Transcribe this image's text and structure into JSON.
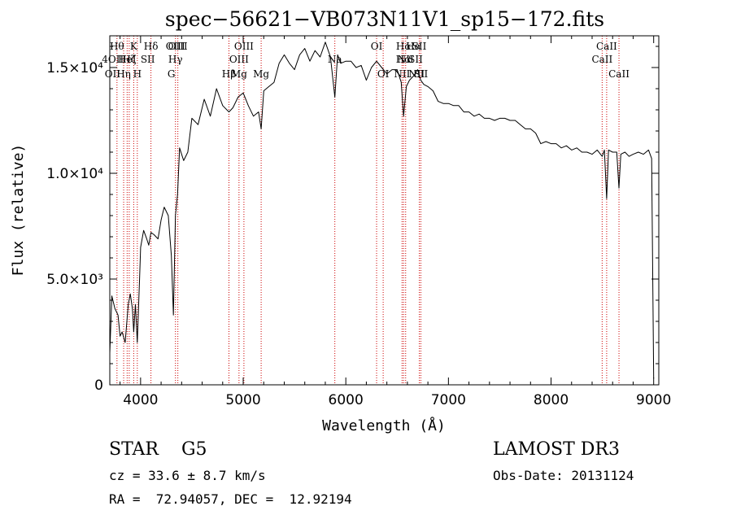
{
  "chart_data": {
    "type": "line",
    "title": "spec−56621−VB073N11V1_sp15−172.fits",
    "xlabel": "Wavelength (Å)",
    "ylabel": "Flux (relative)",
    "xlim": [
      3700,
      9050
    ],
    "ylim": [
      0,
      16500
    ],
    "x_ticks": [
      4000,
      5000,
      6000,
      7000,
      8000,
      9000
    ],
    "y_ticks": [
      {
        "value": 0,
        "label": "0"
      },
      {
        "value": 5000,
        "label": "5.0×10³"
      },
      {
        "value": 10000,
        "label": "1.0×10⁴"
      },
      {
        "value": 15000,
        "label": "1.5×10⁴"
      }
    ],
    "grid": false,
    "legend": "none",
    "series": [
      {
        "x": [
          3700,
          3720,
          3750,
          3780,
          3800,
          3820,
          3850,
          3880,
          3900,
          3920,
          3933,
          3950,
          3968,
          3990,
          4000,
          4030,
          4060,
          4080,
          4101,
          4130,
          4170,
          4200,
          4230,
          4270,
          4300,
          4320,
          4340,
          4360,
          4380,
          4420,
          4460,
          4500,
          4560,
          4620,
          4680,
          4740,
          4800,
          4861,
          4900,
          4950,
          5000,
          5050,
          5100,
          5150,
          5175,
          5200,
          5250,
          5300,
          5350,
          5400,
          5450,
          5500,
          5550,
          5600,
          5650,
          5700,
          5750,
          5800,
          5850,
          5893,
          5920,
          5950,
          6000,
          6050,
          6100,
          6150,
          6200,
          6250,
          6300,
          6350,
          6400,
          6450,
          6500,
          6540,
          6563,
          6590,
          6620,
          6660,
          6700,
          6730,
          6760,
          6800,
          6850,
          6900,
          6950,
          7000,
          7050,
          7100,
          7150,
          7200,
          7250,
          7300,
          7350,
          7400,
          7450,
          7500,
          7550,
          7600,
          7650,
          7700,
          7750,
          7800,
          7850,
          7900,
          7950,
          8000,
          8050,
          8100,
          8150,
          8200,
          8250,
          8300,
          8350,
          8400,
          8450,
          8498,
          8520,
          8542,
          8560,
          8600,
          8640,
          8662,
          8680,
          8720,
          8760,
          8800,
          8850,
          8900,
          8950,
          8980,
          9000
        ],
        "y": [
          1500,
          4200,
          3600,
          3300,
          2300,
          2500,
          2000,
          3800,
          4300,
          3600,
          2500,
          3800,
          2000,
          5000,
          6500,
          7300,
          6900,
          6600,
          7200,
          7100,
          6900,
          7800,
          8400,
          8000,
          6100,
          3300,
          8000,
          9000,
          11200,
          10600,
          11000,
          12600,
          12300,
          13500,
          12700,
          14000,
          13200,
          12900,
          13100,
          13600,
          13800,
          13200,
          12700,
          12900,
          12100,
          13900,
          14100,
          14300,
          15200,
          15600,
          15200,
          14900,
          15600,
          15900,
          15300,
          15800,
          15500,
          16200,
          15500,
          13600,
          15600,
          15200,
          15300,
          15300,
          15000,
          15100,
          14400,
          15000,
          15300,
          15000,
          14700,
          14900,
          14900,
          14300,
          12700,
          14100,
          14400,
          14600,
          14900,
          14400,
          14200,
          14100,
          13900,
          13400,
          13300,
          13300,
          13200,
          13200,
          12900,
          12900,
          12700,
          12800,
          12600,
          12600,
          12500,
          12600,
          12600,
          12500,
          12500,
          12300,
          12100,
          12100,
          11900,
          11400,
          11500,
          11400,
          11400,
          11200,
          11300,
          11100,
          11200,
          11000,
          11000,
          10900,
          11100,
          10800,
          11100,
          8800,
          11100,
          11000,
          11000,
          9300,
          10900,
          11000,
          10800,
          10900,
          11000,
          10900,
          11100,
          10700,
          300
        ]
      }
    ],
    "lines": [
      {
        "w": 3770,
        "label": "Hθ",
        "row": 0
      },
      {
        "w": 3835,
        "label": "Hη",
        "row": 2
      },
      {
        "w": 3869,
        "label": "HeI",
        "row": 1
      },
      {
        "w": 3889,
        "label": "Hζ",
        "row": 1
      },
      {
        "w": 3933,
        "label": "K",
        "row": 0
      },
      {
        "w": 3968,
        "label": "H",
        "row": 2
      },
      {
        "w": 4101,
        "label": "Hδ",
        "row": 0
      },
      {
        "w": 4340,
        "label": "Hγ",
        "row": 1
      },
      {
        "w": 4363,
        "label": "OIII",
        "row": 0
      },
      {
        "w": 4861,
        "label": "Hβ",
        "row": 2
      },
      {
        "w": 4959,
        "label": "OIII",
        "row": 1
      },
      {
        "w": 5007,
        "label": "OIII",
        "row": 0
      },
      {
        "w": 5175,
        "label": "Mg",
        "row": 2
      },
      {
        "w": 5893,
        "label": "Na",
        "row": 1
      },
      {
        "w": 6300,
        "label": "OI",
        "row": 0
      },
      {
        "w": 6364,
        "label": "OI",
        "row": 2
      },
      {
        "w": 6548,
        "label": "NII",
        "row": 2
      },
      {
        "w": 6563,
        "label": "Hα",
        "row": 0
      },
      {
        "w": 6583,
        "label": "NII",
        "row": 1
      },
      {
        "w": 6716,
        "label": "SII",
        "row": 0
      },
      {
        "w": 6731,
        "label": "SII",
        "row": 2
      },
      {
        "w": 8498,
        "label": "CaII",
        "row": 1
      },
      {
        "w": 8542,
        "label": "CaII",
        "row": 0
      },
      {
        "w": 8662,
        "label": "CaII",
        "row": 2
      }
    ],
    "extra_labels": [
      {
        "w": 3727,
        "label": "OII",
        "row": 2
      },
      {
        "w": 3730,
        "label": "4OII",
        "row": 1
      },
      {
        "w": 4070,
        "label": "SII",
        "row": 1
      },
      {
        "w": 4300,
        "label": "G",
        "row": 2
      },
      {
        "w": 4340,
        "label": "OIII",
        "row": 0
      },
      {
        "w": 4960,
        "label": "Mg",
        "row": 2
      },
      {
        "w": 6562,
        "label": "Hα",
        "row": 1
      },
      {
        "w": 6680,
        "label": "SII",
        "row": 1
      },
      {
        "w": 6690,
        "label": "NII",
        "row": 2
      },
      {
        "w": 6660,
        "label": "Hα",
        "row": 0
      }
    ],
    "line_color": "#000000",
    "marker_color": "#cc0000"
  },
  "info": {
    "object_class": "STAR",
    "subclass": "G5",
    "survey": "LAMOST DR3",
    "redshift_text": "cz = 33.6 ± 8.7 km/s",
    "obs_date": "Obs-Date: 20131124",
    "radec": "RA =  72.94057, DEC =  12.92194"
  }
}
